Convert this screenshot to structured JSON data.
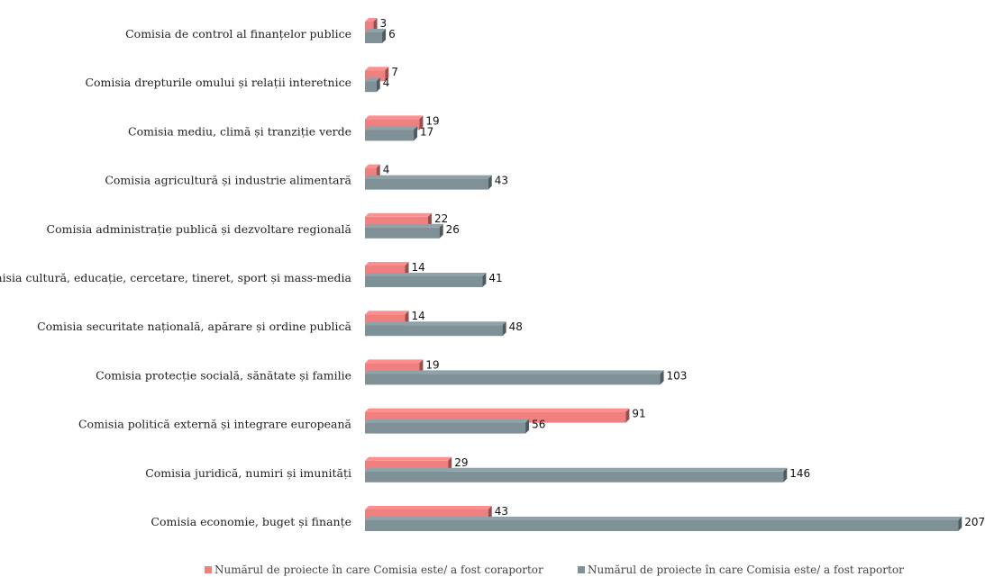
{
  "chart_data": {
    "type": "bar",
    "orientation": "horizontal",
    "style": "3d",
    "categories": [
      "Comisia de control al finanțelor publice",
      "Comisia drepturile omului și relații interetnice",
      "Comisia mediu, climă și tranziție verde",
      "Comisia agricultură și industrie alimentară",
      "Comisia administrație publică și dezvoltare regională",
      "Comisia cultură, educație, cercetare, tineret, sport și mass-media",
      "Comisia securitate națională, apărare și ordine publică",
      "Comisia protecție socială, sănătate și familie",
      "Comisia politică externă și integrare europeană",
      "Comisia juridică, numiri și imunități",
      "Comisia economie, buget și finanțe"
    ],
    "series": [
      {
        "name": "Numărul de proiecte în care Comisia este/ a fost coraportor",
        "color": "#f08080",
        "values": [
          3,
          7,
          19,
          4,
          22,
          14,
          14,
          19,
          91,
          29,
          43
        ]
      },
      {
        "name": "Numărul de proiecte în care Comisia este/ a fost raportor",
        "color": "#7f9197",
        "values": [
          6,
          4,
          17,
          43,
          26,
          41,
          48,
          103,
          56,
          146,
          207
        ]
      }
    ],
    "xlim": [
      0,
      210
    ],
    "grid": false,
    "axes_visible": false,
    "legend_position": "bottom"
  }
}
